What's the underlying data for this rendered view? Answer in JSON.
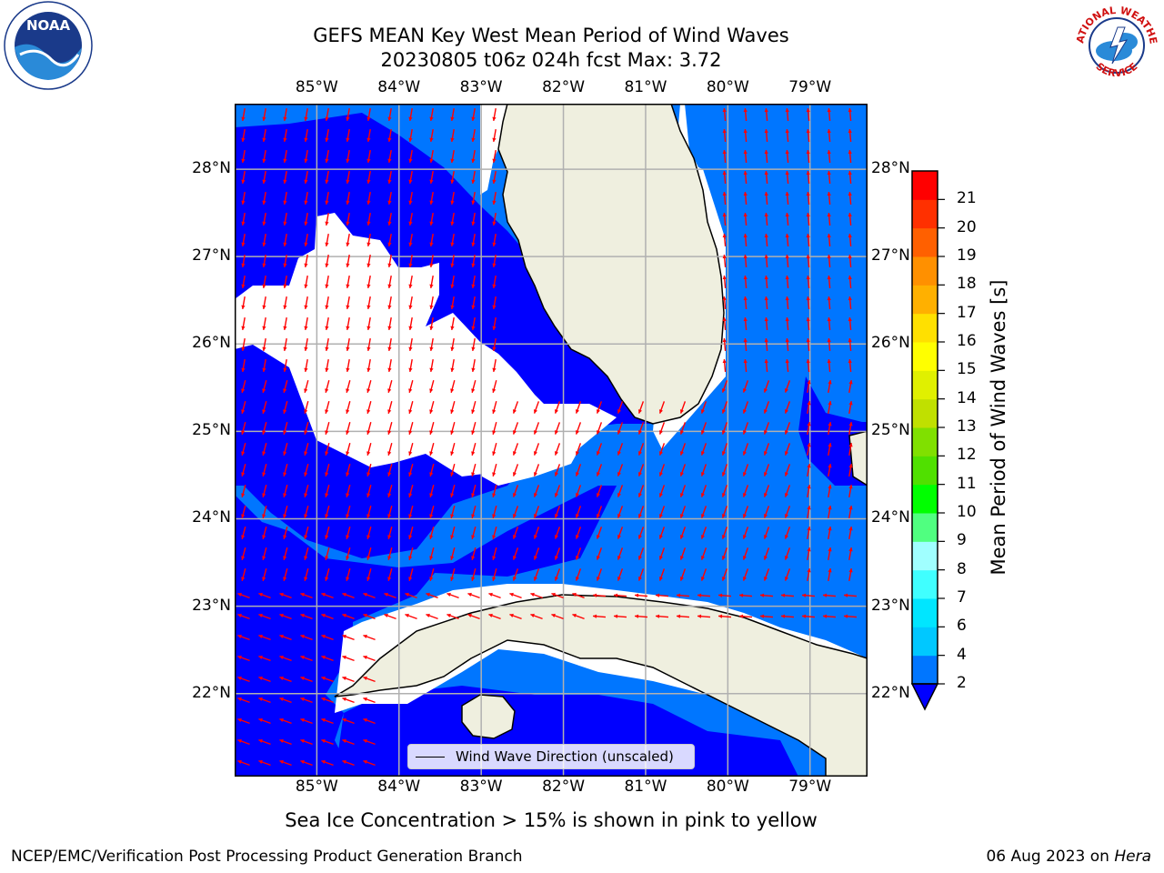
{
  "title_line1": "GEFS MEAN Key West Mean Period of Wind Waves",
  "title_line2": "20230805 t06z 024h fcst   Max: 3.72",
  "map": {
    "lon_range": [
      -86,
      -78.3
    ],
    "lat_range": [
      21.05,
      28.75
    ],
    "lon_ticks": [
      -85,
      -84,
      -83,
      -82,
      -81,
      -80,
      -79
    ],
    "lat_ticks": [
      22,
      23,
      24,
      25,
      26,
      27,
      28
    ],
    "lon_tick_labels": [
      "85°W",
      "84°W",
      "83°W",
      "82°W",
      "81°W",
      "80°W",
      "79°W"
    ],
    "lat_tick_labels": [
      "22°N",
      "23°N",
      "24°N",
      "25°N",
      "26°N",
      "27°N",
      "28°N"
    ],
    "grid": true,
    "land_color": "#efefdf",
    "arrow_color": "#ff0000"
  },
  "colorbar": {
    "label": "Mean Period of Wind Waves [s]",
    "ticks": [
      "2",
      "4",
      "6",
      "7",
      "8",
      "9",
      "10",
      "11",
      "12",
      "13",
      "14",
      "15",
      "16",
      "17",
      "18",
      "19",
      "20",
      "21"
    ],
    "colors": [
      "#0076ff",
      "#00c8ff",
      "#00e6ff",
      "#40ffff",
      "#a0ffff",
      "#50ff80",
      "#00ff00",
      "#50e000",
      "#80e000",
      "#c0e000",
      "#e0f000",
      "#ffff00",
      "#ffe000",
      "#ffb000",
      "#ff9000",
      "#ff6000",
      "#ff3000",
      "#ff0000"
    ],
    "extend_color": "#0000ff"
  },
  "legend": {
    "label": "Wind Wave Direction (unscaled)"
  },
  "bottom_note": "Sea Ice Concentration > 15% is shown in pink to yellow",
  "footer_left": "NCEP/EMC/Verification Post Processing Product Generation Branch",
  "footer_right_prefix": "06 Aug 2023 on ",
  "footer_right_host": "Hera",
  "logos": {
    "left": "NOAA",
    "right_top": "NATIONAL WEATHER",
    "right_bottom": "SERVICE"
  }
}
